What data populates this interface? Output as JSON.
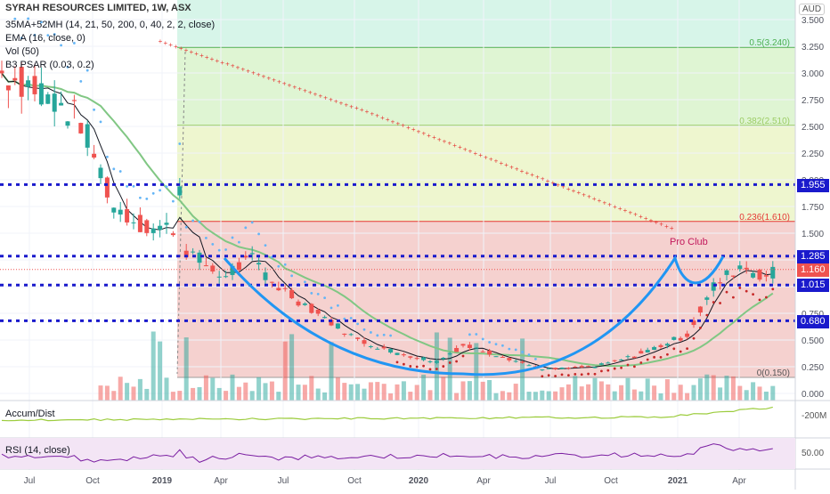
{
  "header": {
    "title": "SYRAH RESOURCES LIMITED, 1W, ASX",
    "indicators": [
      "35MA+52MH (14, 21, 50, 200, 0, 40, 2, 2, close)",
      "EMA (16, close, 0)",
      "Vol (50)",
      "B3 PSAR (0.03, 0.2)"
    ],
    "currency": "AUD"
  },
  "annotation": {
    "pro_club": "Pro Club"
  },
  "price_labels": {
    "last": "1.160"
  },
  "panes": {
    "accum": {
      "title": "Accum/Dist",
      "axis_label": "-200M"
    },
    "rsi": {
      "title": "RSI (14, close)",
      "axis_label": "50.00"
    }
  },
  "colors": {
    "up": "#26a69a",
    "down": "#ef5350",
    "level_line": "#1a1acc",
    "cup": "#2196f3",
    "ma200": "#e53935",
    "ema": "#131722",
    "ma50": "#81c784",
    "psar_up": "#64b5f6",
    "psar_down": "#c62828",
    "fib_green": "#b9f6ca",
    "fib_red": "#ffcdd2",
    "rsi_line": "#7b1fa2"
  },
  "chart_data": {
    "type": "candlestick",
    "y_axis": {
      "range": [
        0.0,
        3.65
      ],
      "ticks": [
        "0.000",
        "0.250",
        "0.500",
        "0.750",
        "1.000",
        "1.250",
        "1.500",
        "1.750",
        "2.000",
        "2.250",
        "2.500",
        "2.750",
        "3.000",
        "3.250",
        "3.500"
      ]
    },
    "x_axis": {
      "ticks": [
        "Jul",
        "Oct",
        "2019",
        "Apr",
        "Jul",
        "Oct",
        "2020",
        "Apr",
        "Jul",
        "Oct",
        "2021",
        "Apr"
      ]
    },
    "horizontal_levels": [
      {
        "value": 1.955,
        "label": "1.955"
      },
      {
        "value": 1.285,
        "label": "1.285"
      },
      {
        "value": 1.015,
        "label": "1.015"
      },
      {
        "value": 0.68,
        "label": "0.680"
      }
    ],
    "fibonacci": [
      {
        "ratio": 0.5,
        "price": 3.24,
        "label": "0.5(3.240)"
      },
      {
        "ratio": 0.382,
        "price": 2.51,
        "label": "0.382(2.510)"
      },
      {
        "ratio": 0.236,
        "price": 1.61,
        "label": "0.236(1.610)"
      },
      {
        "ratio": 0,
        "price": 0.15,
        "label": "0(0.150)"
      }
    ],
    "last_price": 1.16,
    "annotations": [
      "Pro Club"
    ],
    "pattern": "cup and handle"
  }
}
